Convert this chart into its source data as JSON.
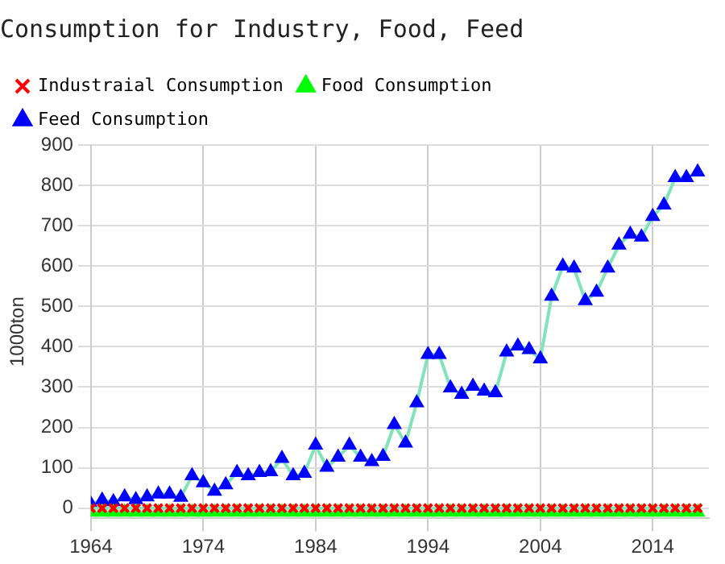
{
  "chart_data": {
    "type": "line",
    "title": "Consumption for Industry, Food, Feed",
    "ylabel": "1000ton",
    "x": [
      1964,
      1965,
      1966,
      1967,
      1968,
      1969,
      1970,
      1971,
      1972,
      1973,
      1974,
      1975,
      1976,
      1977,
      1978,
      1979,
      1980,
      1981,
      1982,
      1983,
      1984,
      1985,
      1986,
      1987,
      1988,
      1989,
      1990,
      1991,
      1992,
      1993,
      1994,
      1995,
      1996,
      1997,
      1998,
      1999,
      2000,
      2001,
      2002,
      2003,
      2004,
      2005,
      2006,
      2007,
      2008,
      2009,
      2010,
      2011,
      2012,
      2013,
      2014,
      2015,
      2016,
      2017,
      2018
    ],
    "series": [
      {
        "name": "Industraial Consumption",
        "color": "#ff0000",
        "marker": "cross",
        "values": [
          0,
          0,
          0,
          0,
          0,
          0,
          0,
          0,
          0,
          0,
          0,
          0,
          0,
          0,
          0,
          0,
          0,
          0,
          0,
          0,
          0,
          0,
          0,
          0,
          0,
          0,
          0,
          0,
          0,
          0,
          0,
          0,
          0,
          0,
          0,
          0,
          0,
          0,
          0,
          0,
          0,
          0,
          0,
          0,
          0,
          0,
          0,
          0,
          0,
          0,
          0,
          0,
          0,
          0,
          0
        ]
      },
      {
        "name": "Food Consumption",
        "color": "#00ff00",
        "marker": "triangle",
        "values": [
          -10,
          -10,
          -10,
          -10,
          -10,
          -10,
          -10,
          -10,
          -10,
          -10,
          -10,
          -10,
          -10,
          -10,
          -10,
          -10,
          -10,
          -10,
          -10,
          -10,
          -10,
          -10,
          -10,
          -10,
          -10,
          -10,
          -10,
          -10,
          -10,
          -10,
          -10,
          -10,
          -10,
          -10,
          -10,
          -10,
          -10,
          -10,
          -10,
          -10,
          -10,
          -10,
          -10,
          -10,
          -10,
          -10,
          -10,
          -10,
          -10,
          -10,
          -10,
          -10,
          -10,
          -10,
          -10
        ]
      },
      {
        "name": "Feed Consumption",
        "color": "#0000ff",
        "marker": "triangle",
        "values": [
          10,
          20,
          16,
          28,
          21,
          28,
          35,
          35,
          27,
          80,
          63,
          42,
          58,
          88,
          80,
          88,
          90,
          123,
          80,
          86,
          156,
          101,
          126,
          156,
          126,
          115,
          128,
          207,
          161,
          261,
          381,
          381,
          298,
          282,
          302,
          290,
          286,
          387,
          402,
          393,
          370,
          525,
          600,
          595,
          514,
          535,
          595,
          652,
          679,
          672,
          723,
          751,
          819,
          819,
          833
        ]
      }
    ],
    "xlim": [
      1964,
      2019
    ],
    "xticks": [
      1964,
      1974,
      1984,
      1994,
      2004,
      2014
    ],
    "ylim": [
      -25,
      900
    ],
    "yticks": [
      0,
      100,
      200,
      300,
      400,
      500,
      600,
      700,
      800,
      900
    ],
    "grid": true,
    "legend": "top",
    "line_style": "solid"
  }
}
